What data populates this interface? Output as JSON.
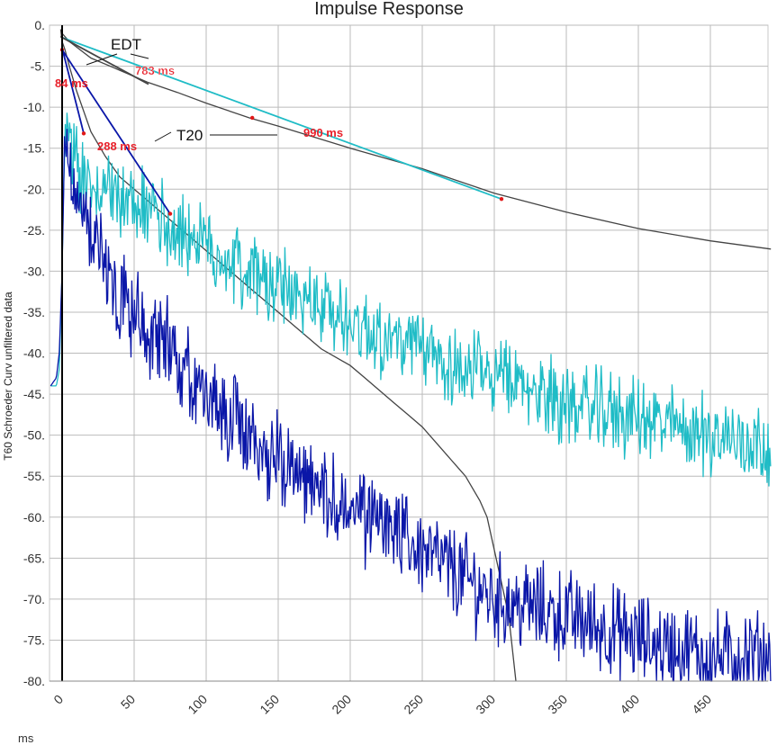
{
  "chart_data": {
    "type": "line",
    "title": "Impulse Response",
    "ylabel": "T60 Schroeder Curv unfiltered data",
    "xlabel": "ms",
    "xlim": [
      -3,
      492
    ],
    "ylim": [
      -80,
      0
    ],
    "x_ticks": [
      0,
      50,
      100,
      150,
      200,
      250,
      300,
      350,
      400,
      450
    ],
    "y_ticks": [
      0,
      -5,
      -10,
      -15,
      -20,
      -25,
      -30,
      -35,
      -40,
      -45,
      -50,
      -55,
      -60,
      -65,
      -70,
      -75,
      -80
    ],
    "y_tick_labels": [
      "0.",
      "-5.",
      "-10.",
      "-15.",
      "-20.",
      "-25.",
      "-30.",
      "-35.",
      "-40.",
      "-45.",
      "-50.",
      "-55.",
      "-60.",
      "-65.",
      "-70.",
      "-75.",
      "-80."
    ],
    "grid": true,
    "annotations": {
      "edt": "EDT",
      "t20": "T20",
      "rt_labels": [
        "783 ms",
        "84 ms",
        "288 ms",
        "990 ms"
      ]
    },
    "colors": {
      "cyan": "#1fbcc6",
      "blue": "#0a16a8",
      "schroeder": "#444444",
      "marker": "#e01818",
      "grid": "#bbbbbb"
    },
    "series": [
      {
        "color": "#444444",
        "x": [
          -1,
          0,
          5,
          20,
          40,
          60,
          80,
          100,
          130,
          150,
          200,
          250,
          300,
          350,
          400,
          450,
          492
        ],
        "y": [
          -1.5,
          -1,
          -2,
          -4,
          -5.5,
          -7,
          -8.2,
          -9.5,
          -11.3,
          -12.3,
          -15,
          -17.5,
          -20.5,
          -22.8,
          -24.8,
          -26.3,
          -27.3
        ]
      },
      {
        "color": "#444444",
        "x": [
          -1,
          0,
          2,
          5,
          10,
          20,
          30,
          40,
          50,
          60,
          70,
          80,
          90,
          100,
          110,
          120,
          130,
          140,
          150,
          160,
          170,
          180,
          190,
          200,
          210,
          220,
          230,
          240,
          250,
          260,
          270,
          280,
          290,
          295,
          300,
          305,
          310,
          315
        ],
        "y": [
          -0.5,
          -2,
          -3,
          -5,
          -8,
          -13,
          -16,
          -18.5,
          -20,
          -21.5,
          -23,
          -24.5,
          -26,
          -27.5,
          -29,
          -30.5,
          -32,
          -33.5,
          -35,
          -36.5,
          -38,
          -39.5,
          -40.5,
          -41.5,
          -43,
          -44.5,
          -46,
          -47.5,
          -49,
          -51,
          -53,
          -55,
          -58,
          -60,
          -64,
          -68,
          -72,
          -80
        ]
      },
      {
        "color": "#1fbcc6",
        "noise": true,
        "x": [
          -8,
          -4,
          -2,
          0,
          2,
          5,
          10,
          20,
          40,
          60,
          80,
          100,
          150,
          200,
          250,
          300,
          350,
          400,
          450,
          492
        ],
        "y": [
          -44,
          -44,
          -42,
          -30,
          -10,
          -14,
          -18,
          -20,
          -21,
          -22,
          -25,
          -27,
          -32,
          -36,
          -40,
          -43,
          -46,
          -48,
          -50,
          -51
        ]
      },
      {
        "color": "#0a16a8",
        "noise": true,
        "x": [
          -8,
          -4,
          -2,
          0,
          2,
          5,
          10,
          20,
          40,
          60,
          80,
          100,
          150,
          200,
          250,
          300,
          350,
          400,
          450,
          492
        ],
        "y": [
          -44,
          -43,
          -40,
          -30,
          -12,
          -17,
          -22,
          -25,
          -32,
          -37,
          -41,
          -45,
          -53,
          -59,
          -64,
          -70,
          -72,
          -75,
          -77,
          -77
        ]
      }
    ],
    "fit_lines": [
      {
        "label": "990 ms",
        "color": "#1fbcc6",
        "x": [
          0,
          305
        ],
        "y": [
          -1.5,
          -21.2
        ],
        "markers": [
          [
            132,
            -11.3
          ],
          [
            305,
            -21.2
          ]
        ]
      },
      {
        "label": "783 ms",
        "color": "#444444",
        "x": [
          0,
          60
        ],
        "y": [
          -1.5,
          -7.2
        ],
        "markers": []
      },
      {
        "label": "84 ms",
        "color": "#0a16a8",
        "x": [
          0,
          15
        ],
        "y": [
          -2.8,
          -13.2
        ],
        "markers": [
          [
            0,
            -3
          ],
          [
            15,
            -13.2
          ]
        ]
      },
      {
        "label": "288 ms",
        "color": "#0a16a8",
        "x": [
          0,
          75
        ],
        "y": [
          -3,
          -23
        ],
        "markers": [
          [
            75,
            -23
          ]
        ]
      }
    ]
  }
}
